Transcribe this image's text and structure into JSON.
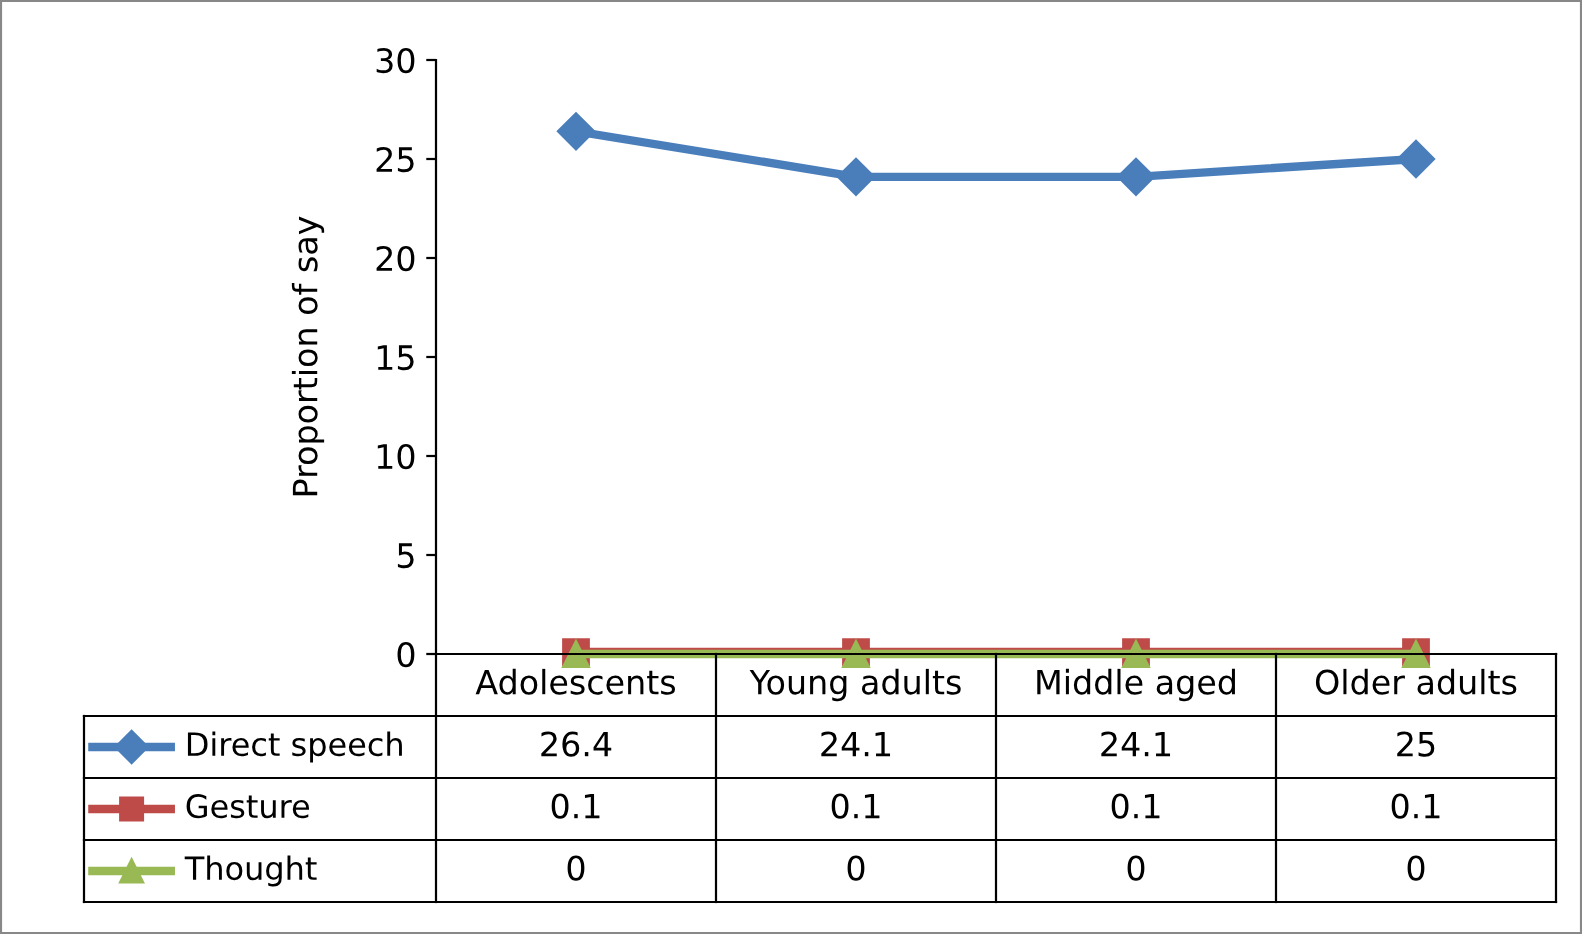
{
  "chart_data": {
    "type": "line",
    "ylabel": "Proportion of say",
    "categories": [
      "Adolescents",
      "Young adults",
      "Middle aged",
      "Older adults"
    ],
    "series": [
      {
        "name": "Direct speech",
        "color": "#4a7ebb",
        "marker": "diamond",
        "values": [
          26.4,
          24.1,
          24.1,
          25
        ]
      },
      {
        "name": "Gesture",
        "color": "#be4b48",
        "marker": "square",
        "values": [
          0.1,
          0.1,
          0.1,
          0.1
        ]
      },
      {
        "name": "Thought",
        "color": "#98b954",
        "marker": "triangle",
        "values": [
          0,
          0,
          0,
          0
        ]
      }
    ],
    "ylim": [
      0,
      30
    ],
    "yticks": [
      0,
      5,
      10,
      15,
      20,
      25,
      30
    ],
    "grid": false,
    "data_labels": true,
    "legend": "bottom"
  }
}
